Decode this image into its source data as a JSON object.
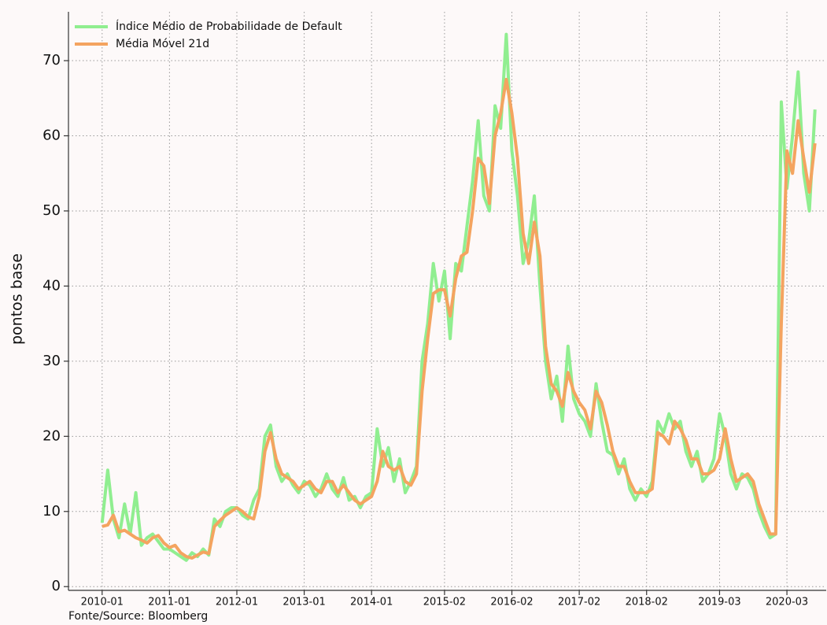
{
  "chart_data": {
    "type": "line",
    "y_label": "pontos base",
    "source": "Fonte/Source: Bloomberg",
    "x": [
      "2010-01",
      "2010-02",
      "2010-03",
      "2010-04",
      "2010-05",
      "2010-06",
      "2010-07",
      "2010-08",
      "2010-09",
      "2010-10",
      "2010-11",
      "2010-12",
      "2011-01",
      "2011-02",
      "2011-03",
      "2011-04",
      "2011-05",
      "2011-06",
      "2011-07",
      "2011-08",
      "2011-09",
      "2011-10",
      "2011-11",
      "2011-12",
      "2012-01",
      "2012-02",
      "2012-03",
      "2012-04",
      "2012-05",
      "2012-06",
      "2012-07",
      "2012-08",
      "2012-09",
      "2012-10",
      "2012-11",
      "2012-12",
      "2013-01",
      "2013-02",
      "2013-03",
      "2013-04",
      "2013-05",
      "2013-06",
      "2013-07",
      "2013-08",
      "2013-09",
      "2013-10",
      "2013-11",
      "2013-12",
      "2014-01",
      "2014-02",
      "2014-03",
      "2014-04",
      "2014-05",
      "2014-06",
      "2014-07",
      "2014-08",
      "2014-09",
      "2014-10",
      "2014-11",
      "2014-12",
      "2015-01",
      "2015-02",
      "2015-03",
      "2015-04",
      "2015-05",
      "2015-06",
      "2015-07",
      "2015-08",
      "2015-09",
      "2015-10",
      "2015-11",
      "2015-12",
      "2016-01",
      "2016-02",
      "2016-03",
      "2016-04",
      "2016-05",
      "2016-06",
      "2016-07",
      "2016-08",
      "2016-09",
      "2016-10",
      "2016-11",
      "2016-12",
      "2017-01",
      "2017-02",
      "2017-03",
      "2017-04",
      "2017-05",
      "2017-06",
      "2017-07",
      "2017-08",
      "2017-09",
      "2017-10",
      "2017-11",
      "2017-12",
      "2018-01",
      "2018-02",
      "2018-03",
      "2018-04",
      "2018-05",
      "2018-06",
      "2018-07",
      "2018-08",
      "2018-09",
      "2018-10",
      "2018-11",
      "2018-12",
      "2019-01",
      "2019-02",
      "2019-03",
      "2019-04",
      "2019-05",
      "2019-06",
      "2019-07",
      "2019-08",
      "2019-09",
      "2019-10",
      "2019-11",
      "2019-12",
      "2020-01",
      "2020-02",
      "2020-03",
      "2020-04",
      "2020-05",
      "2020-06",
      "2020-07",
      "2020-08"
    ],
    "series": [
      {
        "name": "Índice Médio de Probabilidade de Default",
        "color": "#90ee90",
        "width": 4,
        "values": [
          8.5,
          15.5,
          9,
          6.5,
          11,
          7,
          12.5,
          5.5,
          6.5,
          7,
          6,
          5,
          5,
          4.5,
          4,
          3.5,
          4.5,
          4,
          5,
          4.2,
          9,
          8,
          10,
          10.5,
          10.5,
          9.5,
          9,
          11.5,
          13,
          20,
          21.5,
          16,
          14,
          15,
          13.5,
          12.5,
          14,
          13.5,
          12,
          13,
          15,
          13,
          12,
          14.5,
          11.5,
          12,
          10.5,
          12,
          12.5,
          21,
          16,
          18.5,
          14,
          17,
          12.5,
          14,
          16,
          30,
          35,
          43,
          38,
          42,
          33,
          43,
          42,
          48,
          54,
          62,
          52,
          50,
          64,
          61,
          73.5,
          58,
          52,
          43,
          46,
          52,
          40,
          30,
          25,
          28,
          22,
          32,
          25,
          23,
          22,
          20,
          27,
          22,
          18,
          17.5,
          15,
          17,
          13,
          11.5,
          13,
          12,
          14,
          22,
          20.5,
          23,
          21,
          22,
          18,
          16,
          18,
          14,
          15,
          17,
          23,
          20,
          15,
          13,
          15,
          14.5,
          13,
          10,
          8,
          6.5,
          7,
          64.5,
          53,
          60,
          68.5,
          55,
          50,
          63.5
        ]
      },
      {
        "name": "Média Móvel 21d",
        "color": "#f4a460",
        "width": 4,
        "values": [
          8,
          8.2,
          9.5,
          7.3,
          7.5,
          7,
          6.5,
          6.2,
          5.8,
          6.5,
          6.8,
          5.8,
          5.2,
          5.5,
          4.5,
          4,
          3.8,
          4.2,
          4.6,
          4.4,
          8,
          8.8,
          9.5,
          10,
          10.5,
          10,
          9.3,
          9,
          12,
          18,
          20.5,
          17,
          15,
          14.5,
          14,
          13,
          13.5,
          14,
          13,
          12.5,
          14,
          14,
          12.5,
          13.5,
          12.5,
          11.5,
          11,
          11.5,
          12,
          14,
          18,
          16,
          15.5,
          16,
          14,
          13.5,
          15,
          26,
          33,
          39,
          39.5,
          39.5,
          36,
          41,
          44,
          44.5,
          50,
          57,
          56,
          51,
          60,
          63,
          67.5,
          63,
          57,
          47,
          43,
          48.5,
          44,
          32,
          27,
          26,
          24,
          28.5,
          26,
          24.5,
          23.5,
          21,
          26,
          24.5,
          21.5,
          18,
          16,
          16,
          14,
          12.5,
          12.5,
          12.5,
          13,
          20.5,
          20,
          19,
          22,
          21,
          19.5,
          17,
          17,
          15,
          15,
          15.5,
          17,
          21,
          17,
          14,
          14.5,
          15,
          14,
          11,
          9,
          7,
          7,
          35,
          58,
          55,
          62,
          57,
          52.5,
          59
        ]
      }
    ],
    "xlim": [
      "2009-07",
      "2020-10"
    ],
    "xticks": [
      "2010-01",
      "2011-01",
      "2012-01",
      "2013-01",
      "2014-01",
      "2015-02",
      "2016-02",
      "2017-02",
      "2018-02",
      "2019-03",
      "2020-03"
    ],
    "ylim": [
      -0.5,
      76.5
    ],
    "yticks": [
      0,
      10,
      20,
      30,
      40,
      50,
      60,
      70
    ],
    "grid": true,
    "legend": "upper-left"
  }
}
